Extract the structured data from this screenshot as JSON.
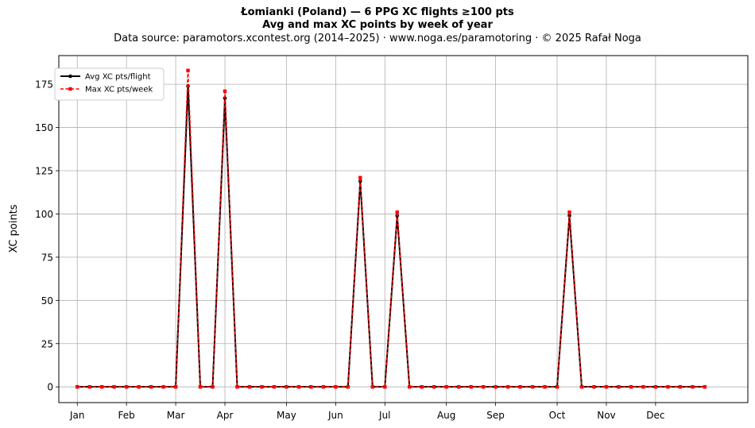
{
  "chart_data": {
    "type": "line",
    "title": "Łomianki (Poland)  —  6 PPG XC flights ≥100 pts",
    "subtitle": "Avg and max XC points by week of year",
    "source": "Data source: paramotors.xcontest.org (2014–2025)  ·  www.noga.es/paramotoring  ·  © 2025 Rafał Noga",
    "xlabel": "",
    "ylabel": "XC points",
    "xlim": [
      -1.5,
      54.5
    ],
    "ylim": [
      -9.1,
      191.6
    ],
    "yticks": [
      0,
      25,
      50,
      75,
      100,
      125,
      150,
      175
    ],
    "grid": true,
    "legend_position": "top-left",
    "month_ticks": [
      {
        "label": "Jan",
        "week": 0
      },
      {
        "label": "Feb",
        "week": 4
      },
      {
        "label": "Mar",
        "week": 8
      },
      {
        "label": "Apr",
        "week": 12
      },
      {
        "label": "May",
        "week": 17
      },
      {
        "label": "Jun",
        "week": 21
      },
      {
        "label": "Jul",
        "week": 25
      },
      {
        "label": "Aug",
        "week": 30
      },
      {
        "label": "Sep",
        "week": 34
      },
      {
        "label": "Oct",
        "week": 39
      },
      {
        "label": "Nov",
        "week": 43
      },
      {
        "label": "Dec",
        "week": 47
      }
    ],
    "x": [
      0,
      1,
      2,
      3,
      4,
      5,
      6,
      7,
      8,
      9,
      10,
      11,
      12,
      13,
      14,
      15,
      16,
      17,
      18,
      19,
      20,
      21,
      22,
      23,
      24,
      25,
      26,
      27,
      28,
      29,
      30,
      31,
      32,
      33,
      34,
      35,
      36,
      37,
      38,
      39,
      40,
      41,
      42,
      43,
      44,
      45,
      46,
      47,
      48,
      49,
      50,
      51
    ],
    "series": [
      {
        "name": "Avg XC pts/flight",
        "color": "#000000",
        "values": [
          0,
          0,
          0,
          0,
          0,
          0,
          0,
          0,
          0,
          174,
          0,
          0,
          167,
          0,
          0,
          0,
          0,
          0,
          0,
          0,
          0,
          0,
          0,
          119,
          0,
          0,
          99,
          0,
          0,
          0,
          0,
          0,
          0,
          0,
          0,
          0,
          0,
          0,
          0,
          0,
          99,
          0,
          0,
          0,
          0,
          0,
          0,
          0,
          0,
          0,
          0,
          0
        ]
      },
      {
        "name": "Max XC pts/week",
        "color": "#ff0000",
        "values": [
          0,
          0,
          0,
          0,
          0,
          0,
          0,
          0,
          0,
          183,
          0,
          0,
          171,
          0,
          0,
          0,
          0,
          0,
          0,
          0,
          0,
          0,
          0,
          121,
          0,
          0,
          101,
          0,
          0,
          0,
          0,
          0,
          0,
          0,
          0,
          0,
          0,
          0,
          0,
          0,
          101,
          0,
          0,
          0,
          0,
          0,
          0,
          0,
          0,
          0,
          0,
          0
        ]
      }
    ]
  }
}
